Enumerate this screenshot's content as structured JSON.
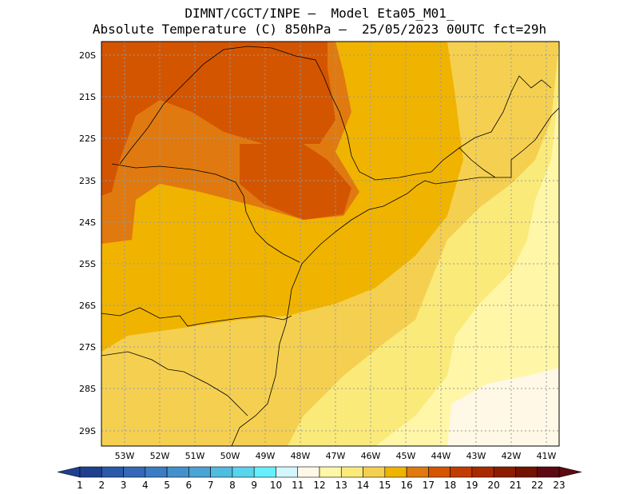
{
  "title": {
    "line1": "DIMNT/CGCT/INPE –  Model Eta05_M01_",
    "line2": "Absolute Temperature (C) 850hPa –  25/05/2023 00UTC fct=29h"
  },
  "map": {
    "lat_labels": [
      "20S",
      "21S",
      "22S",
      "23S",
      "24S",
      "25S",
      "26S",
      "27S",
      "28S",
      "29S"
    ],
    "lon_labels": [
      "53W",
      "52W",
      "51W",
      "50W",
      "49W",
      "48W",
      "47W",
      "46W",
      "45W",
      "44W",
      "43W",
      "42W",
      "41W"
    ],
    "fields": [
      {
        "name": "field-15",
        "color": "#f0b400"
      },
      {
        "name": "field-14",
        "color": "#f5d050"
      },
      {
        "name": "field-16",
        "color": "#e07a10"
      },
      {
        "name": "field-17",
        "color": "#d45500"
      },
      {
        "name": "field-13",
        "color": "#faea7a"
      },
      {
        "name": "field-12",
        "color": "#fff6a8"
      },
      {
        "name": "field-11",
        "color": "#fff8e6"
      }
    ]
  },
  "colorbar": {
    "labels": [
      "1",
      "2",
      "3",
      "4",
      "5",
      "6",
      "7",
      "8",
      "9",
      "10",
      "11",
      "12",
      "13",
      "14",
      "15",
      "16",
      "17",
      "18",
      "19",
      "20",
      "21",
      "22",
      "23"
    ],
    "colors": [
      "#1f3f8f",
      "#2a5aa8",
      "#3468b8",
      "#3c7cc4",
      "#4490cc",
      "#4aa4d6",
      "#50bce0",
      "#58d4ec",
      "#66f0ff",
      "#d4f6ff",
      "#fff8e6",
      "#fff6a8",
      "#faea7a",
      "#f5d050",
      "#f0b400",
      "#e07a10",
      "#d45500",
      "#c23c00",
      "#aa2a00",
      "#8c1c00",
      "#741200",
      "#5c0a10"
    ]
  }
}
